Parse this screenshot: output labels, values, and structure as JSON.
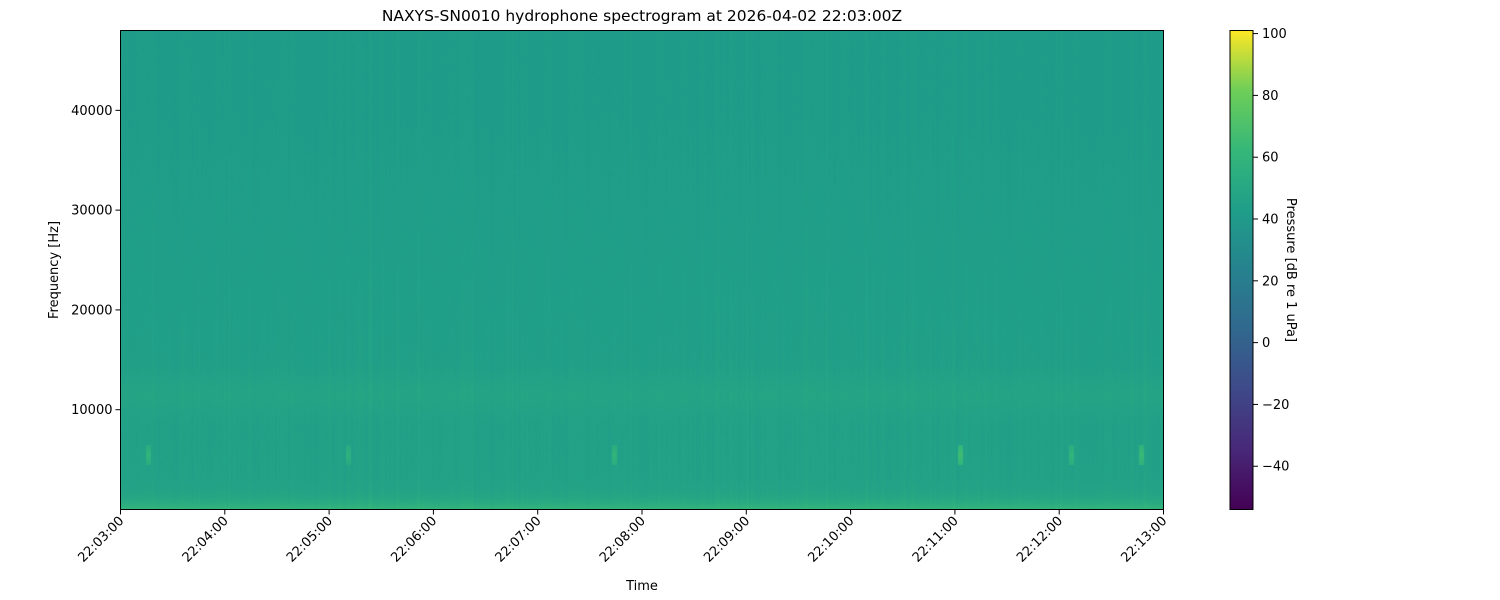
{
  "chart_data": {
    "type": "heatmap",
    "title": "NAXYS-SN0010 hydrophone spectrogram at 2026-04-02 22:03:00Z",
    "xlabel": "Time",
    "ylabel": "Frequency [Hz]",
    "xlim": [
      "22:03:00",
      "22:13:00"
    ],
    "ylim": [
      0,
      48000
    ],
    "x_ticks": [
      "22:03:00",
      "22:04:00",
      "22:05:00",
      "22:06:00",
      "22:07:00",
      "22:08:00",
      "22:09:00",
      "22:10:00",
      "22:11:00",
      "22:12:00",
      "22:13:00"
    ],
    "y_ticks": [
      10000,
      20000,
      30000,
      40000
    ],
    "y_tick_labels": [
      "10000",
      "20000",
      "30000",
      "40000"
    ],
    "colormap": "viridis",
    "colorbar": {
      "label": "Pressure [dB re 1 uPa]",
      "range": [
        -54,
        101
      ],
      "ticks": [
        -40,
        -20,
        0,
        20,
        40,
        60,
        80,
        100
      ],
      "tick_labels": [
        "−40",
        "−20",
        "0",
        "20",
        "40",
        "60",
        "80",
        "100"
      ]
    },
    "levels_db": {
      "background_high_freq": 42,
      "background_mid_freq": 46,
      "band_near_11500_hz": 50,
      "low_freq_band_below_1000_hz": 62
    },
    "transients": [
      {
        "time": "22:03:16",
        "frequency_hz": 5500,
        "level_db": 60
      },
      {
        "time": "22:05:11",
        "frequency_hz": 5500,
        "level_db": 58
      },
      {
        "time": "22:07:44",
        "frequency_hz": 5500,
        "level_db": 60
      },
      {
        "time": "22:11:03",
        "frequency_hz": 5500,
        "level_db": 66
      },
      {
        "time": "22:12:07",
        "frequency_hz": 5500,
        "level_db": 60
      },
      {
        "time": "22:12:47",
        "frequency_hz": 5500,
        "level_db": 64
      }
    ],
    "grid": false
  }
}
